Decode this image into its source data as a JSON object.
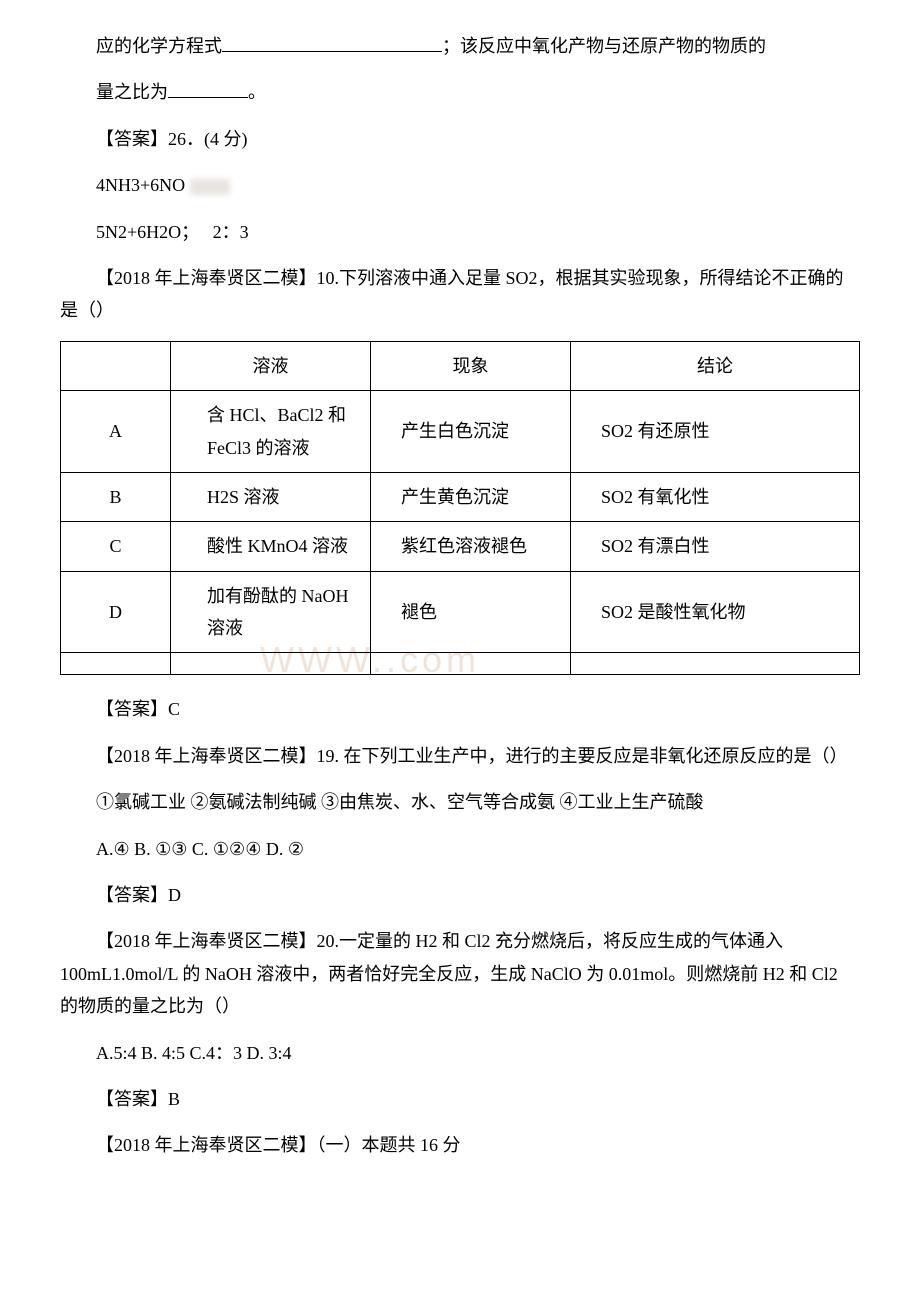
{
  "p1": "应的化学方程式",
  "p1b": "；该反应中氧化产物与还原产物的物质的",
  "p2": "量之比为",
  "p2b": "。",
  "p3": "【答案】26．(4 分)",
  "p4": "4NH3+6NO",
  "p5a": "5N2+6H2O；",
  "p5b": "2：3",
  "p6": "【2018 年上海奉贤区二模】10.下列溶液中通入足量 SO2，根据其实验现象，所得结论不正确的是（）",
  "table": {
    "header": {
      "c1": "",
      "c2": "溶液",
      "c3": "现象",
      "c4": "结论"
    },
    "rows": [
      {
        "c1": "A",
        "c2": "含 HCl、BaCl2 和 FeCl3 的溶液",
        "c3": "产生白色沉淀",
        "c4": "SO2 有还原性"
      },
      {
        "c1": "B",
        "c2": "H2S 溶液",
        "c3": "产生黄色沉淀",
        "c4": "SO2 有氧化性"
      },
      {
        "c1": "C",
        "c2": "酸性 KMnO4 溶液",
        "c3": "紫红色溶液褪色",
        "c4": "SO2 有漂白性"
      },
      {
        "c1": "D",
        "c2": "加有酚酞的 NaOH 溶液",
        "c3": "褪色",
        "c4": "SO2 是酸性氧化物"
      }
    ]
  },
  "p7": "【答案】C",
  "p8": "【2018 年上海奉贤区二模】19. 在下列工业生产中，进行的主要反应是非氧化还原反应的是（）",
  "p9": "①氯碱工业 ②氨碱法制纯碱 ③由焦炭、水、空气等合成氨 ④工业上生产硫酸",
  "p10": "A.④ B. ①③ C. ①②④ D. ②",
  "p11": "【答案】D",
  "p12": "【2018 年上海奉贤区二模】20.一定量的 H2 和 Cl2 充分燃烧后，将反应生成的气体通入 100mL1.0mol/L 的 NaOH 溶液中，两者恰好完全反应，生成 NaClO 为 0.01mol。则燃烧前 H2 和 Cl2 的物质的量之比为（）",
  "p13": "A.5:4 B. 4:5 C.4：3 D. 3:4",
  "p14": "【答案】B",
  "p15": "【2018 年上海奉贤区二模】（一）本题共 16 分",
  "watermark": "WWW.",
  "watermarkdom": ".com"
}
